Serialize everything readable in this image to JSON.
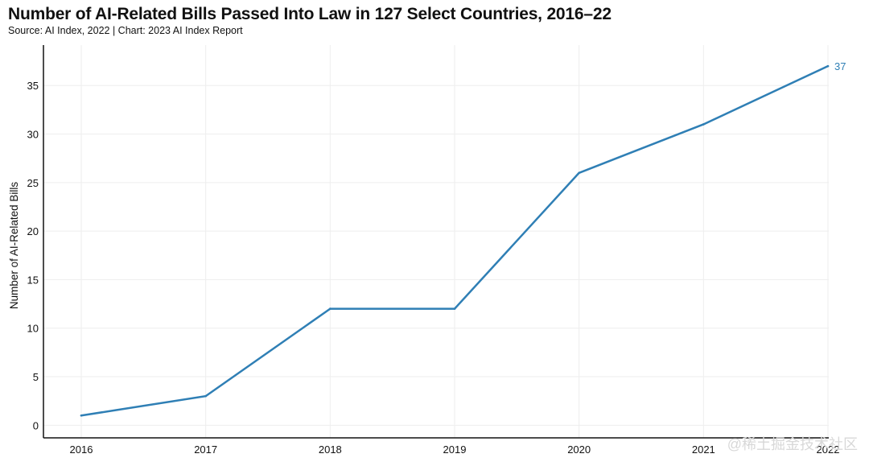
{
  "header": {
    "title": "Number of AI-Related Bills Passed Into Law in 127 Select Countries, 2016–22",
    "subtitle": "Source: AI Index, 2022 | Chart: 2023 AI Index Report"
  },
  "chart_data": {
    "type": "line",
    "title": "Number of AI-Related Bills Passed Into Law in 127 Select Countries, 2016–22",
    "subtitle": "Source: AI Index, 2022 | Chart: 2023 AI Index Report",
    "xlabel": "",
    "ylabel": "Number of AI-Related Bills",
    "categories": [
      "2016",
      "2017",
      "2018",
      "2019",
      "2020",
      "2021",
      "2022"
    ],
    "series": [
      {
        "values": [
          1,
          3,
          12,
          12,
          26,
          31,
          37
        ],
        "color": "#2f7fb5"
      }
    ],
    "end_label": "37",
    "yticks": [
      "0",
      "5",
      "10",
      "15",
      "20",
      "25",
      "30",
      "35"
    ],
    "ylim": [
      -1.3,
      39
    ],
    "grid": true,
    "legend": "none"
  },
  "watermark": "@稀土掘金技术社区",
  "colors": {
    "line": "#2f7fb5",
    "axis": "#111111",
    "grid": "#eeeeee"
  }
}
